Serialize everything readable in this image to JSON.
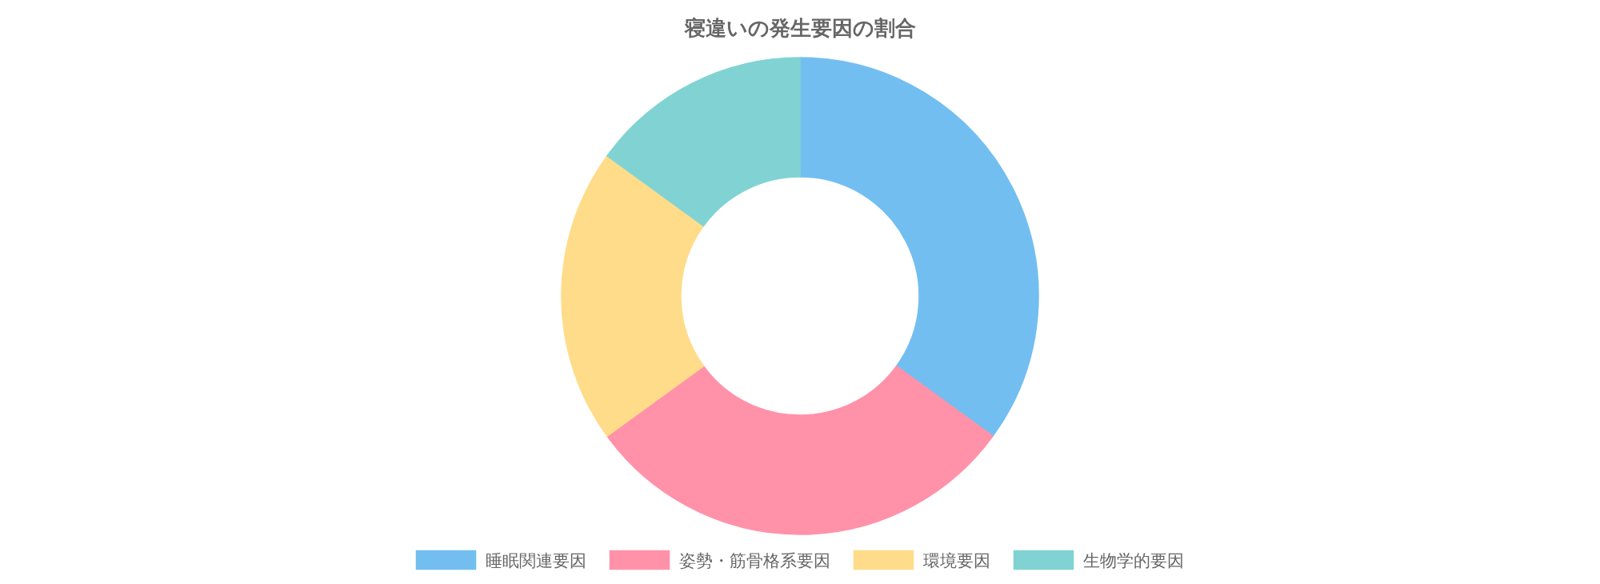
{
  "chart_data": {
    "type": "donut",
    "title": "寝違いの発生要因の割合",
    "categories": [
      "睡眠関連要因",
      "姿勢・筋骨格系要因",
      "環境要因",
      "生物学的要因"
    ],
    "values": [
      35,
      30,
      20,
      15
    ],
    "colors": [
      "#72bef1",
      "#ff92a9",
      "#ffdc89",
      "#81d3d3"
    ],
    "legend": "bottom"
  }
}
